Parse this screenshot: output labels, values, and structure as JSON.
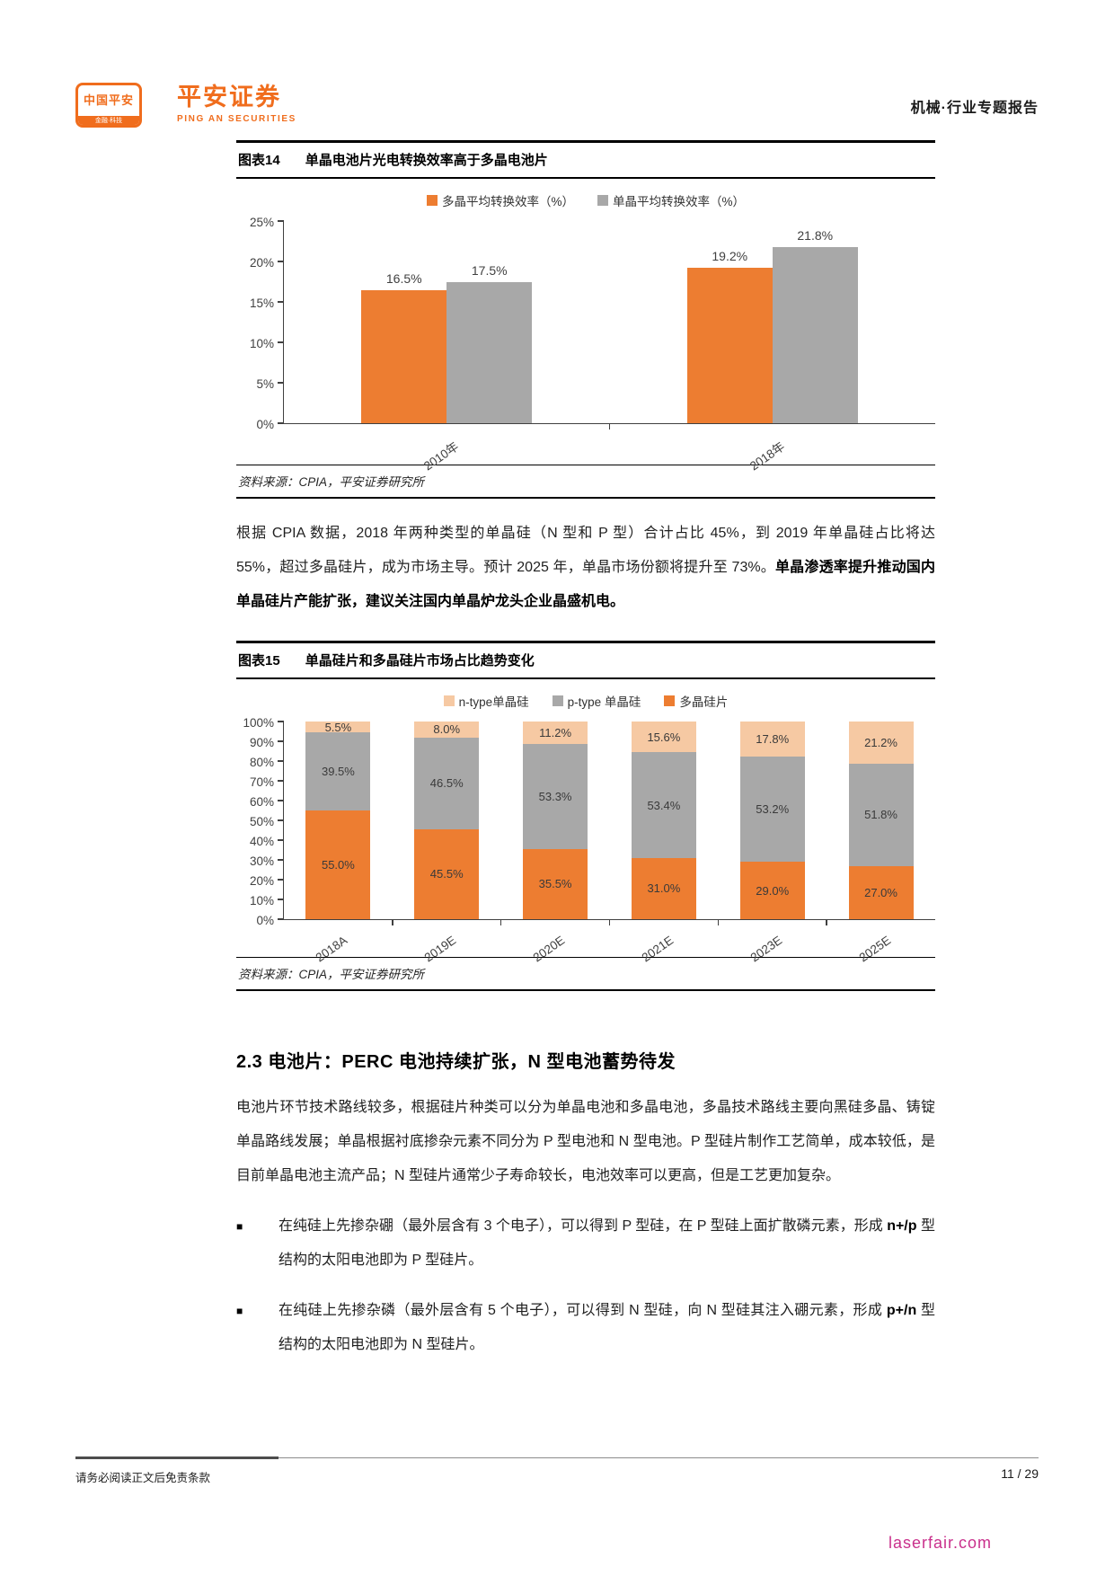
{
  "header": {
    "logo_line1": "中国平安",
    "logo_line2": "金融·科技",
    "brand_cn": "平安证券",
    "brand_en": "PING AN SECURITIES",
    "report_label": "机械·行业专题报告"
  },
  "figure14": {
    "label": "图表14",
    "title": "单晶电池片光电转换效率高于多晶电池片",
    "source": "资料来源：CPIA，平安证券研究所"
  },
  "paragraph1": {
    "segments": [
      {
        "t": "根据 CPIA 数据，2018 年两种类型的单晶硅（N 型和 P 型）合计占比 45%，到 2019 年单晶硅占比将达 55%，超过多晶硅片，成为市场主导。预计 2025 年，单晶市场份额将提升至 73%。",
        "b": false
      },
      {
        "t": "单晶渗透率提升推动国内单晶硅片产能扩张，建议关注国内单晶炉龙头企业晶盛机电。",
        "b": true
      }
    ]
  },
  "figure15": {
    "label": "图表15",
    "title": "单晶硅片和多晶硅片市场占比趋势变化",
    "source": "资料来源：CPIA，平安证券研究所"
  },
  "section": {
    "heading": "2.3 电池片：PERC 电池持续扩张，N 型电池蓄势待发"
  },
  "body": {
    "paragraph": "电池片环节技术路线较多，根据硅片种类可以分为单晶电池和多晶电池，多晶技术路线主要向黑硅多晶、铸锭单晶路线发展；单晶根据衬底掺杂元素不同分为 P 型电池和 N 型电池。P 型硅片制作工艺简单，成本较低，是目前单晶电池主流产品；N 型硅片通常少子寿命较长，电池效率可以更高，但是工艺更加复杂。",
    "bullets": [
      {
        "segments": [
          {
            "t": "在纯硅上先掺杂硼（最外层含有 3 个电子），可以得到 P 型硅，在 P 型硅上面扩散磷元素，形成 ",
            "b": false
          },
          {
            "t": "n+/p",
            "b": true
          },
          {
            "t": " 型结构的太阳电池即为 P 型硅片。",
            "b": false
          }
        ]
      },
      {
        "segments": [
          {
            "t": "在纯硅上先掺杂磷（最外层含有 5 个电子），可以得到 N 型硅，向 N 型硅其注入硼元素，形成 ",
            "b": false
          },
          {
            "t": "p+/n",
            "b": true
          },
          {
            "t": " 型结构的太阳电池即为 N 型硅片。",
            "b": false
          }
        ]
      }
    ]
  },
  "footer": {
    "disclaimer": "请务必阅读正文后免责条款",
    "page": "11 / 29"
  },
  "watermark": "laserfair.com",
  "colors": {
    "brand_orange": "#f06d1d",
    "chart_orange": "#ED7D31",
    "chart_gray": "#A8A8A8",
    "chart_peach": "#F6C9A3",
    "watermark_pink": "#c9308c"
  },
  "chart_data": [
    {
      "type": "bar",
      "stacked": false,
      "title": "单晶电池片光电转换效率高于多晶电池片",
      "categories": [
        "2010年",
        "2018年"
      ],
      "series": [
        {
          "name": "多晶平均转换效率（%）",
          "color": "#ED7D31",
          "values": [
            16.5,
            19.2
          ]
        },
        {
          "name": "单晶平均转换效率（%）",
          "color": "#A8A8A8",
          "values": [
            17.5,
            21.8
          ]
        }
      ],
      "legend": [
        {
          "name": "多晶平均转换效率（%）",
          "color": "#ED7D31"
        },
        {
          "name": "单晶平均转换效率（%）",
          "color": "#A8A8A8"
        }
      ],
      "xlabel": "",
      "ylabel": "",
      "ylim": [
        0,
        25
      ],
      "yticks": [
        "0%",
        "5%",
        "10%",
        "15%",
        "20%",
        "25%"
      ],
      "grid": false,
      "legend_position": "top",
      "data_label_format": "one-decimal-percent"
    },
    {
      "type": "bar",
      "stacked": true,
      "title": "单晶硅片和多晶硅片市场占比趋势变化",
      "categories": [
        "2018A",
        "2019E",
        "2020E",
        "2021E",
        "2023E",
        "2025E"
      ],
      "series": [
        {
          "name": "多晶硅片",
          "color": "#ED7D31",
          "values": [
            55.0,
            45.5,
            35.5,
            31.0,
            29.0,
            27.0
          ]
        },
        {
          "name": "p-type 单晶硅",
          "color": "#A8A8A8",
          "values": [
            39.5,
            46.5,
            53.3,
            53.4,
            53.2,
            51.8
          ]
        },
        {
          "name": "n-type单晶硅",
          "color": "#F6C9A3",
          "values": [
            5.5,
            8.0,
            11.2,
            15.6,
            17.8,
            21.2
          ]
        }
      ],
      "legend": [
        {
          "name": "n-type单晶硅",
          "color": "#F6C9A3"
        },
        {
          "name": "p-type 单晶硅",
          "color": "#A8A8A8"
        },
        {
          "name": "多晶硅片",
          "color": "#ED7D31"
        }
      ],
      "xlabel": "",
      "ylabel": "",
      "ylim": [
        0,
        100
      ],
      "yticks": [
        "0%",
        "10%",
        "20%",
        "30%",
        "40%",
        "50%",
        "60%",
        "70%",
        "80%",
        "90%",
        "100%"
      ],
      "grid": false,
      "legend_position": "top",
      "data_label_format": "one-decimal-percent"
    }
  ]
}
